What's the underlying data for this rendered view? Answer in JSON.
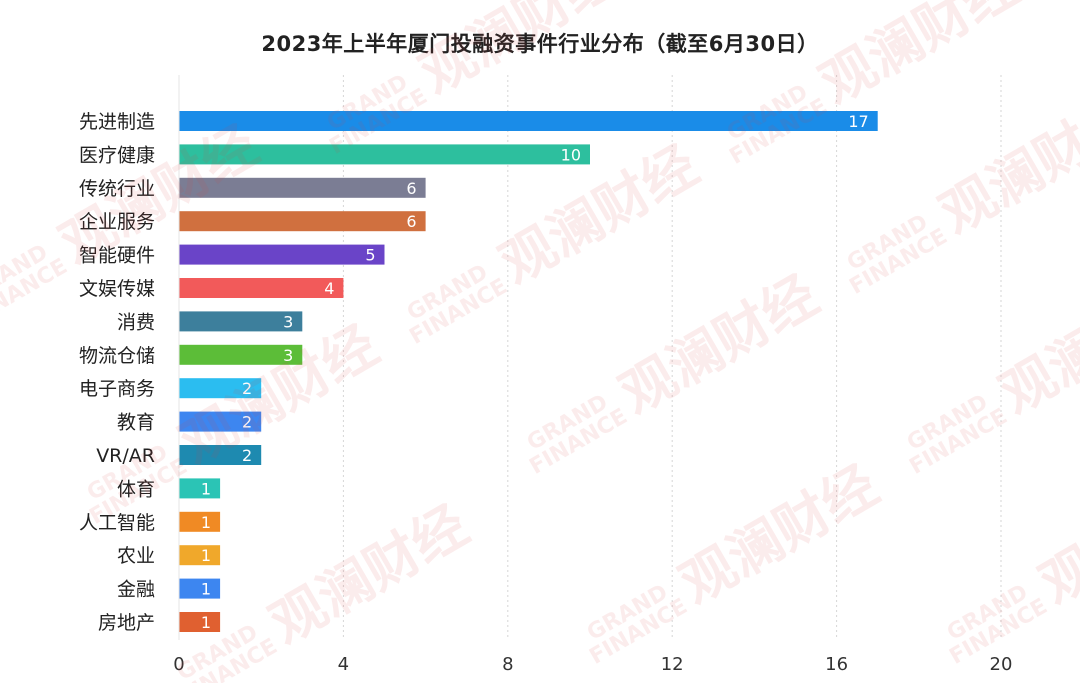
{
  "chart_data": {
    "type": "bar",
    "orientation": "horizontal",
    "title": "2023年上半年厦门投融资事件行业分布（截至6月30日）",
    "xlabel": "",
    "ylabel": "",
    "xlim": [
      0,
      20
    ],
    "x_ticks": [
      0,
      4,
      8,
      12,
      16,
      20
    ],
    "grid": "vertical dashed",
    "categories": [
      "先进制造",
      "医疗健康",
      "传统行业",
      "企业服务",
      "智能硬件",
      "文娱传媒",
      "消费",
      "物流仓储",
      "电子商务",
      "教育",
      "VR/AR",
      "体育",
      "人工智能",
      "农业",
      "金融",
      "房地产"
    ],
    "values": [
      17,
      10,
      6,
      6,
      5,
      4,
      3,
      3,
      2,
      2,
      2,
      1,
      1,
      1,
      1,
      1
    ],
    "bar_colors": [
      "#1a8ce8",
      "#2dbf9e",
      "#7b7d94",
      "#d0703f",
      "#6a44c8",
      "#f25a5a",
      "#3d7f9c",
      "#5cbd38",
      "#2bbdf0",
      "#3d86f0",
      "#1e8ab0",
      "#2bc4b5",
      "#f08a24",
      "#f0a82b",
      "#3d86f0",
      "#e06030"
    ]
  },
  "watermark": {
    "cn": "观澜财经",
    "en_line1": "GRAND",
    "en_line2": "FINANCE"
  }
}
